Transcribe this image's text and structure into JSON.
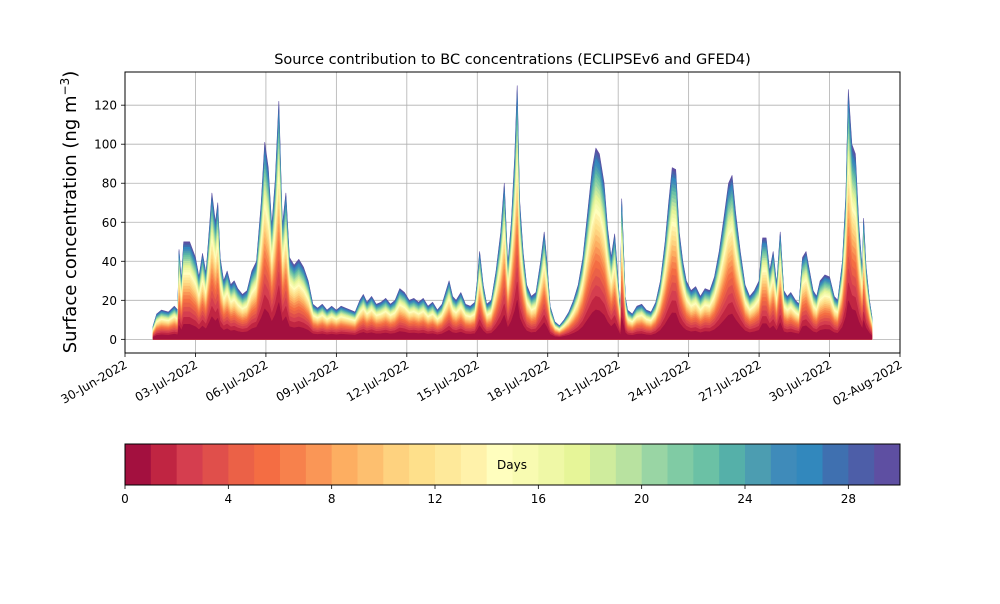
{
  "chart_data": {
    "type": "area",
    "title": "Source contribution to BC concentrations (ECLIPSEv6 and GFED4)",
    "ylabel_main": "Surface concentration (ng m",
    "ylabel_exp": "−3",
    "ylabel_close": ")",
    "xlabel": "",
    "x_start": "2022-07-01",
    "x_end": "2022-08-01",
    "xlim": [
      "2022-06-30",
      "2022-08-02"
    ],
    "ylim": [
      -7,
      137
    ],
    "grid": true,
    "x_ticks": [
      "30-Jun-2022",
      "03-Jul-2022",
      "06-Jul-2022",
      "09-Jul-2022",
      "12-Jul-2022",
      "15-Jul-2022",
      "18-Jul-2022",
      "21-Jul-2022",
      "24-Jul-2022",
      "27-Jul-2022",
      "30-Jul-2022",
      "02-Aug-2022"
    ],
    "y_ticks": [
      0,
      20,
      40,
      60,
      80,
      100,
      120
    ],
    "total_series": [
      [
        1.2,
        7
      ],
      [
        1.35,
        13
      ],
      [
        1.55,
        15
      ],
      [
        1.85,
        14
      ],
      [
        2.1,
        17
      ],
      [
        2.25,
        15
      ],
      [
        2.3,
        46
      ],
      [
        2.4,
        30
      ],
      [
        2.5,
        50
      ],
      [
        2.75,
        50
      ],
      [
        3.0,
        42
      ],
      [
        3.15,
        32
      ],
      [
        3.3,
        44
      ],
      [
        3.45,
        34
      ],
      [
        3.6,
        58
      ],
      [
        3.7,
        75
      ],
      [
        3.85,
        60
      ],
      [
        3.95,
        70
      ],
      [
        4.05,
        42
      ],
      [
        4.2,
        30
      ],
      [
        4.35,
        35
      ],
      [
        4.5,
        28
      ],
      [
        4.65,
        30
      ],
      [
        4.8,
        26
      ],
      [
        5.0,
        23
      ],
      [
        5.2,
        25
      ],
      [
        5.4,
        35
      ],
      [
        5.6,
        40
      ],
      [
        5.8,
        70
      ],
      [
        5.95,
        101
      ],
      [
        6.1,
        88
      ],
      [
        6.25,
        58
      ],
      [
        6.4,
        82
      ],
      [
        6.55,
        122
      ],
      [
        6.7,
        58
      ],
      [
        6.85,
        75
      ],
      [
        7.0,
        42
      ],
      [
        7.2,
        38
      ],
      [
        7.4,
        41
      ],
      [
        7.6,
        37
      ],
      [
        7.8,
        30
      ],
      [
        8.0,
        18
      ],
      [
        8.2,
        16
      ],
      [
        8.4,
        18
      ],
      [
        8.6,
        15
      ],
      [
        8.8,
        17
      ],
      [
        9.0,
        15
      ],
      [
        9.2,
        17
      ],
      [
        9.4,
        16
      ],
      [
        9.6,
        15
      ],
      [
        9.8,
        14
      ],
      [
        10.0,
        20
      ],
      [
        10.15,
        23
      ],
      [
        10.3,
        19
      ],
      [
        10.5,
        22
      ],
      [
        10.7,
        18
      ],
      [
        10.9,
        19
      ],
      [
        11.1,
        21
      ],
      [
        11.3,
        18
      ],
      [
        11.5,
        20
      ],
      [
        11.7,
        26
      ],
      [
        11.9,
        24
      ],
      [
        12.1,
        20
      ],
      [
        12.3,
        21
      ],
      [
        12.5,
        19
      ],
      [
        12.7,
        21
      ],
      [
        12.9,
        17
      ],
      [
        13.1,
        19
      ],
      [
        13.3,
        15
      ],
      [
        13.5,
        18
      ],
      [
        13.7,
        26
      ],
      [
        13.8,
        30
      ],
      [
        13.95,
        22
      ],
      [
        14.1,
        20
      ],
      [
        14.3,
        24
      ],
      [
        14.5,
        18
      ],
      [
        14.7,
        17
      ],
      [
        14.9,
        19
      ],
      [
        15.0,
        30
      ],
      [
        15.1,
        45
      ],
      [
        15.25,
        28
      ],
      [
        15.4,
        18
      ],
      [
        15.6,
        20
      ],
      [
        15.8,
        35
      ],
      [
        16.0,
        55
      ],
      [
        16.15,
        80
      ],
      [
        16.3,
        38
      ],
      [
        16.45,
        60
      ],
      [
        16.6,
        95
      ],
      [
        16.7,
        130
      ],
      [
        16.8,
        72
      ],
      [
        16.95,
        45
      ],
      [
        17.1,
        28
      ],
      [
        17.3,
        22
      ],
      [
        17.5,
        24
      ],
      [
        17.7,
        40
      ],
      [
        17.85,
        55
      ],
      [
        17.95,
        42
      ],
      [
        18.1,
        17
      ],
      [
        18.3,
        9
      ],
      [
        18.5,
        7
      ],
      [
        18.7,
        10
      ],
      [
        18.9,
        14
      ],
      [
        19.1,
        20
      ],
      [
        19.3,
        28
      ],
      [
        19.5,
        42
      ],
      [
        19.7,
        65
      ],
      [
        19.9,
        88
      ],
      [
        20.05,
        98
      ],
      [
        20.2,
        95
      ],
      [
        20.4,
        80
      ],
      [
        20.55,
        57
      ],
      [
        20.7,
        42
      ],
      [
        20.85,
        54
      ],
      [
        21.0,
        30
      ],
      [
        21.1,
        12
      ],
      [
        21.15,
        72
      ],
      [
        21.3,
        22
      ],
      [
        21.4,
        15
      ],
      [
        21.6,
        13
      ],
      [
        21.8,
        17
      ],
      [
        22.0,
        18
      ],
      [
        22.2,
        15
      ],
      [
        22.4,
        14
      ],
      [
        22.6,
        19
      ],
      [
        22.8,
        30
      ],
      [
        23.0,
        50
      ],
      [
        23.15,
        70
      ],
      [
        23.3,
        88
      ],
      [
        23.45,
        87
      ],
      [
        23.6,
        55
      ],
      [
        23.75,
        40
      ],
      [
        23.9,
        30
      ],
      [
        24.1,
        25
      ],
      [
        24.3,
        27
      ],
      [
        24.5,
        22
      ],
      [
        24.7,
        26
      ],
      [
        24.9,
        25
      ],
      [
        25.1,
        32
      ],
      [
        25.3,
        45
      ],
      [
        25.5,
        62
      ],
      [
        25.7,
        80
      ],
      [
        25.85,
        84
      ],
      [
        26.0,
        65
      ],
      [
        26.2,
        45
      ],
      [
        26.4,
        28
      ],
      [
        26.6,
        22
      ],
      [
        26.8,
        25
      ],
      [
        27.0,
        30
      ],
      [
        27.15,
        52
      ],
      [
        27.3,
        52
      ],
      [
        27.45,
        35
      ],
      [
        27.6,
        45
      ],
      [
        27.75,
        28
      ],
      [
        27.9,
        55
      ],
      [
        28.05,
        25
      ],
      [
        28.2,
        22
      ],
      [
        28.35,
        24
      ],
      [
        28.55,
        20
      ],
      [
        28.7,
        18
      ],
      [
        28.85,
        42
      ],
      [
        29.0,
        45
      ],
      [
        29.15,
        35
      ],
      [
        29.3,
        25
      ],
      [
        29.45,
        22
      ],
      [
        29.6,
        30
      ],
      [
        29.8,
        33
      ],
      [
        30.0,
        32
      ],
      [
        30.2,
        22
      ],
      [
        30.35,
        20
      ],
      [
        30.55,
        40
      ],
      [
        30.7,
        75
      ],
      [
        30.8,
        128
      ],
      [
        30.95,
        100
      ],
      [
        31.1,
        95
      ],
      [
        31.25,
        58
      ],
      [
        31.4,
        35
      ],
      [
        31.45,
        62
      ],
      [
        31.55,
        38
      ],
      [
        31.7,
        20
      ],
      [
        31.8,
        12
      ]
    ],
    "colorbar": {
      "label": "Days",
      "min": 0,
      "max": 30,
      "ticks": [
        0,
        4,
        8,
        12,
        16,
        20,
        24,
        28
      ],
      "colors": [
        "#a3103f",
        "#c02542",
        "#d53e4f",
        "#e04f4b",
        "#eb6147",
        "#f46d43",
        "#f7814c",
        "#fa9656",
        "#fdae61",
        "#fdbf6f",
        "#fed27f",
        "#fee08b",
        "#fee99a",
        "#fff2aa",
        "#fffebe",
        "#f8fbb1",
        "#eff8a6",
        "#e6f598",
        "#cfec9d",
        "#b8e2a0",
        "#99d5a4",
        "#80cba4",
        "#6bc1a5",
        "#55b0a9",
        "#4c9db1",
        "#3f8bba",
        "#3288bd",
        "#3f70b0",
        "#4d5ea8",
        "#5e4fa2"
      ]
    }
  }
}
